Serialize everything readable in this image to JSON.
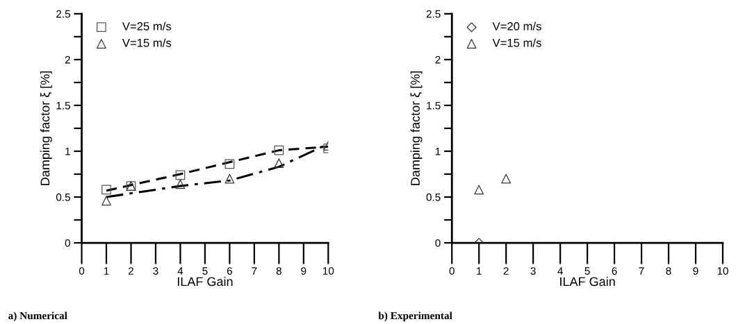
{
  "chart_data": [
    {
      "type": "scatter",
      "xlabel": "ILAF Gain",
      "ylabel": "Damping factor ξ [%]",
      "xlim": [
        0,
        10
      ],
      "ylim": [
        0,
        2.5
      ],
      "xticks": [
        0,
        1,
        2,
        3,
        4,
        5,
        6,
        7,
        8,
        9,
        10
      ],
      "yticks": [
        0,
        {
          "value": 0.25,
          "label": null
        },
        0.5,
        {
          "value": 0.75,
          "label": null
        },
        1,
        {
          "value": 1.25,
          "label": null
        },
        1.5,
        {
          "value": 1.75,
          "label": null
        },
        2,
        {
          "value": 2.25,
          "label": null
        },
        2.5
      ],
      "grid": false,
      "legend": "top left",
      "annotations": [
        "a) Numerical"
      ],
      "series": [
        {
          "name": "V=25 m/s",
          "color": "#555555",
          "marker": "square",
          "x": [
            1,
            2,
            4,
            6,
            8,
            10
          ],
          "values": [
            0.58,
            0.62,
            0.74,
            0.86,
            1.01,
            1.03
          ]
        },
        {
          "name": "V=15 m/s",
          "color": "#333333",
          "marker": "triangle",
          "x": [
            1,
            2,
            4,
            6,
            8,
            10
          ],
          "values": [
            0.46,
            0.62,
            0.64,
            0.7,
            0.87,
            1.06
          ]
        },
        {
          "type": "line",
          "color": "#000000",
          "line_style": "dashed",
          "x": [
            1,
            4,
            6,
            8,
            10
          ],
          "values": [
            0.57,
            0.75,
            0.88,
            1.01,
            1.05
          ]
        },
        {
          "type": "line",
          "color": "#000000",
          "line_style": "dashdot",
          "x": [
            1,
            4,
            6,
            8,
            10
          ],
          "values": [
            0.5,
            0.62,
            0.68,
            0.83,
            1.08
          ]
        }
      ]
    },
    {
      "type": "scatter",
      "xlabel": "ILAF Gain",
      "ylabel": "Damping factor ξ [%]",
      "xlim": [
        0,
        10
      ],
      "ylim": [
        0,
        2.5
      ],
      "xticks": [
        0,
        1,
        2,
        3,
        4,
        5,
        6,
        7,
        8,
        9,
        10
      ],
      "yticks": [
        0,
        {
          "value": 0.25,
          "label": null
        },
        0.5,
        {
          "value": 0.75,
          "label": null
        },
        1,
        {
          "value": 1.25,
          "label": null
        },
        1.5,
        {
          "value": 1.75,
          "label": null
        },
        2,
        {
          "value": 2.25,
          "label": null
        },
        2.5
      ],
      "grid": false,
      "legend": "top left",
      "annotations": [
        "b) Experimental"
      ],
      "series": [
        {
          "name": "V=20 m/s",
          "color": "#333333",
          "marker": "diamond",
          "x": [
            1
          ],
          "values": [
            0
          ]
        },
        {
          "name": "V=15 m/s",
          "color": "#333333",
          "marker": "triangle",
          "x": [
            1,
            2
          ],
          "values": [
            0.58,
            0.7
          ]
        }
      ]
    }
  ]
}
